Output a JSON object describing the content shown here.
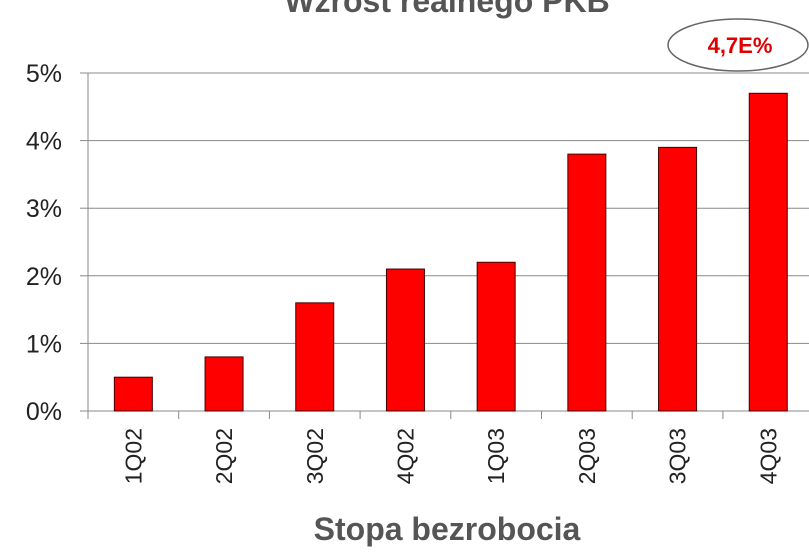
{
  "chart_data": {
    "type": "bar",
    "title": "Wzrost realnego PKB",
    "annotation": "4,7E%",
    "xlabel": "Stopa bezrobocia",
    "categories": [
      "1Q02",
      "2Q02",
      "3Q02",
      "4Q02",
      "1Q03",
      "2Q03",
      "3Q03",
      "4Q03"
    ],
    "values": [
      0.5,
      0.8,
      1.6,
      2.1,
      2.2,
      3.8,
      3.9,
      4.7
    ],
    "color": "#ff0000",
    "ylim": [
      0,
      5
    ],
    "yticks": [
      {
        "value": 0,
        "label": "0%"
      },
      {
        "value": 1,
        "label": "1%"
      },
      {
        "value": 2,
        "label": "2%"
      },
      {
        "value": 3,
        "label": "3%"
      },
      {
        "value": 4,
        "label": "4%"
      },
      {
        "value": 5,
        "label": "5%"
      }
    ],
    "grid": true
  }
}
